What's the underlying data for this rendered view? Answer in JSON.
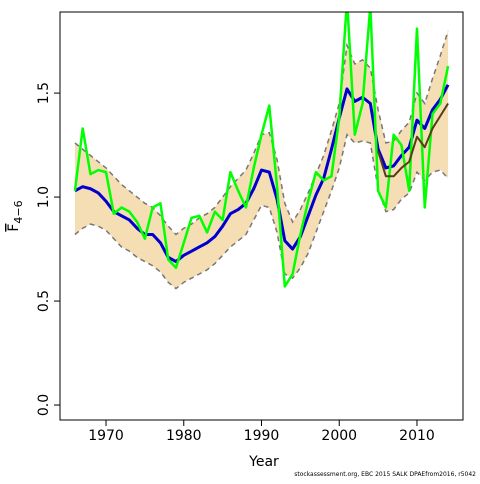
{
  "chart_data": {
    "type": "line",
    "y_label": "F",
    "y_label_subscript": "4−6",
    "x_label": "Year",
    "footnote": "stockassessment.org, EBC 2015 SALK DPAEfrom2016, r5042",
    "x": [
      1966,
      1967,
      1968,
      1969,
      1970,
      1971,
      1972,
      1973,
      1974,
      1975,
      1976,
      1977,
      1978,
      1979,
      1980,
      1981,
      1982,
      1983,
      1984,
      1985,
      1986,
      1987,
      1988,
      1989,
      1990,
      1991,
      1992,
      1993,
      1994,
      1995,
      1996,
      1997,
      1998,
      1999,
      2000,
      2001,
      2002,
      2003,
      2004,
      2005,
      2006,
      2007,
      2008,
      2009,
      2010,
      2011,
      2012,
      2013,
      2014
    ],
    "band": {
      "color": "#f5deb3",
      "edge_color": "#777777",
      "upper": [
        1.26,
        1.23,
        1.2,
        1.17,
        1.14,
        1.1,
        1.06,
        1.03,
        1.0,
        0.97,
        0.95,
        0.91,
        0.86,
        0.82,
        0.85,
        0.87,
        0.9,
        0.92,
        0.95,
        1.0,
        1.05,
        1.09,
        1.13,
        1.21,
        1.3,
        1.31,
        1.18,
        0.97,
        0.88,
        0.94,
        1.02,
        1.11,
        1.2,
        1.32,
        1.45,
        1.73,
        1.64,
        1.66,
        1.62,
        1.42,
        1.26,
        1.27,
        1.32,
        1.36,
        1.5,
        1.45,
        1.57,
        1.68,
        1.8
      ],
      "lower": [
        0.82,
        0.85,
        0.87,
        0.86,
        0.84,
        0.8,
        0.76,
        0.74,
        0.71,
        0.69,
        0.67,
        0.64,
        0.59,
        0.56,
        0.59,
        0.61,
        0.63,
        0.65,
        0.68,
        0.72,
        0.76,
        0.79,
        0.82,
        0.89,
        0.96,
        0.95,
        0.83,
        0.63,
        0.61,
        0.66,
        0.73,
        0.83,
        0.93,
        1.03,
        1.14,
        1.3,
        1.26,
        1.27,
        1.26,
        1.04,
        0.93,
        0.94,
        0.99,
        1.02,
        1.12,
        1.08,
        1.12,
        1.13,
        1.09
      ]
    },
    "series": [
      {
        "color": "#0000cd",
        "width": 3,
        "values": [
          1.03,
          1.05,
          1.04,
          1.02,
          0.98,
          0.93,
          0.91,
          0.89,
          0.85,
          0.82,
          0.82,
          0.78,
          0.71,
          0.69,
          0.72,
          0.74,
          0.76,
          0.78,
          0.81,
          0.86,
          0.92,
          0.94,
          0.97,
          1.04,
          1.13,
          1.12,
          0.99,
          0.79,
          0.75,
          0.81,
          0.91,
          1.01,
          1.09,
          1.23,
          1.38,
          1.52,
          1.46,
          1.48,
          1.45,
          1.23,
          1.14,
          1.15,
          1.2,
          1.24,
          1.37,
          1.33,
          1.42,
          1.47,
          1.54
        ]
      },
      {
        "color": "#00ff00",
        "width": 2.5,
        "values": [
          1.03,
          1.33,
          1.11,
          1.13,
          1.12,
          0.92,
          0.95,
          0.93,
          0.88,
          0.8,
          0.95,
          0.97,
          0.7,
          0.66,
          0.78,
          0.9,
          0.91,
          0.83,
          0.93,
          0.89,
          1.12,
          1.03,
          0.95,
          1.14,
          1.3,
          1.44,
          1.05,
          0.57,
          0.63,
          0.82,
          0.98,
          1.12,
          1.08,
          1.1,
          1.38,
          1.95,
          1.3,
          1.45,
          1.92,
          1.03,
          0.95,
          1.3,
          1.25,
          1.03,
          1.81,
          0.95,
          1.4,
          1.45,
          1.63
        ]
      },
      {
        "color": "#5a3a1a",
        "width": 2,
        "values": [
          null,
          null,
          null,
          null,
          null,
          null,
          null,
          null,
          null,
          null,
          null,
          null,
          null,
          null,
          null,
          null,
          null,
          null,
          null,
          null,
          null,
          null,
          null,
          null,
          null,
          null,
          null,
          null,
          null,
          null,
          null,
          null,
          null,
          null,
          null,
          null,
          null,
          null,
          null,
          1.22,
          1.1,
          1.1,
          1.14,
          1.17,
          1.29,
          1.24,
          1.33,
          1.39,
          1.45
        ]
      }
    ],
    "xlim": [
      1964.08,
      2015.92
    ],
    "xticks": [
      1970,
      1980,
      1990,
      2000,
      2010
    ],
    "ylim": [
      -0.072,
      1.89
    ],
    "yticks": [
      {
        "value": 0,
        "label": "0.0"
      },
      0.5,
      {
        "value": 1,
        "label": "1.0"
      },
      1.5
    ]
  }
}
